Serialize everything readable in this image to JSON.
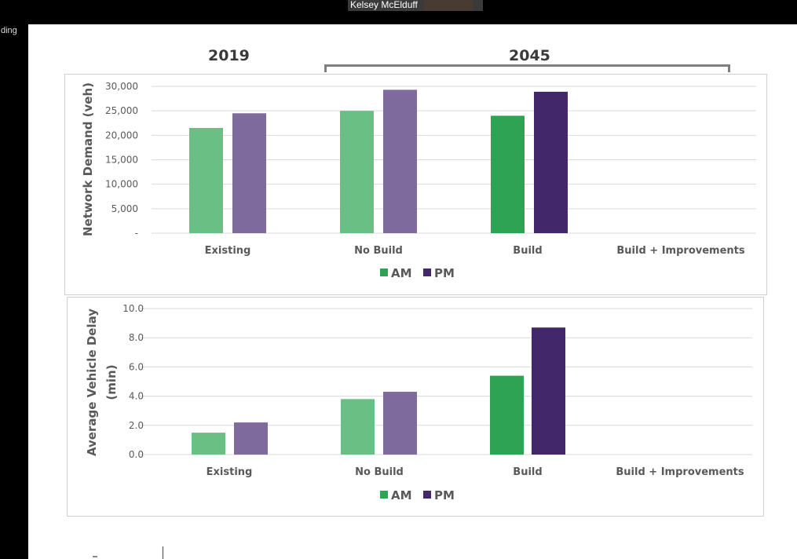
{
  "meeting": {
    "speaker_name": "Kelsey McElduff",
    "left_label": "ding"
  },
  "header": {
    "year_left": "2019",
    "year_right": "2045"
  },
  "colors": {
    "am_light": "#6abf85",
    "pm_light": "#7f6a9e",
    "am_dark": "#2ea353",
    "pm_dark": "#42286b",
    "grid": "#d9d9d9",
    "text": "#595959"
  },
  "chart_data": [
    {
      "type": "bar",
      "title": "",
      "ylabel": "Network Demand (veh)",
      "xlabel": "",
      "categories": [
        "Existing",
        "No Build",
        "Build",
        "Build + Improvements"
      ],
      "series": [
        {
          "name": "AM",
          "values": [
            21500,
            25000,
            24000,
            null
          ]
        },
        {
          "name": "PM",
          "values": [
            24500,
            29300,
            28900,
            null
          ]
        }
      ],
      "ylim": [
        0,
        30000
      ],
      "yticks": [
        0,
        5000,
        10000,
        15000,
        20000,
        25000,
        30000
      ],
      "ytick_labels": [
        "-",
        "5,000",
        "10,000",
        "15,000",
        "20,000",
        "25,000",
        "30,000"
      ],
      "legend": "bottom"
    },
    {
      "type": "bar",
      "title": "",
      "ylabel": "Average Vehicle Delay",
      "ylabel2": "(min)",
      "xlabel": "",
      "categories": [
        "Existing",
        "No Build",
        "Build",
        "Build + Improvements"
      ],
      "series": [
        {
          "name": "AM",
          "values": [
            1.5,
            3.8,
            5.4,
            null
          ]
        },
        {
          "name": "PM",
          "values": [
            2.2,
            4.3,
            8.7,
            null
          ]
        }
      ],
      "ylim": [
        0,
        10
      ],
      "yticks": [
        0,
        2,
        4,
        6,
        8,
        10
      ],
      "ytick_labels": [
        "0.0",
        "2.0",
        "4.0",
        "6.0",
        "8.0",
        "10.0"
      ],
      "legend": "bottom"
    }
  ]
}
